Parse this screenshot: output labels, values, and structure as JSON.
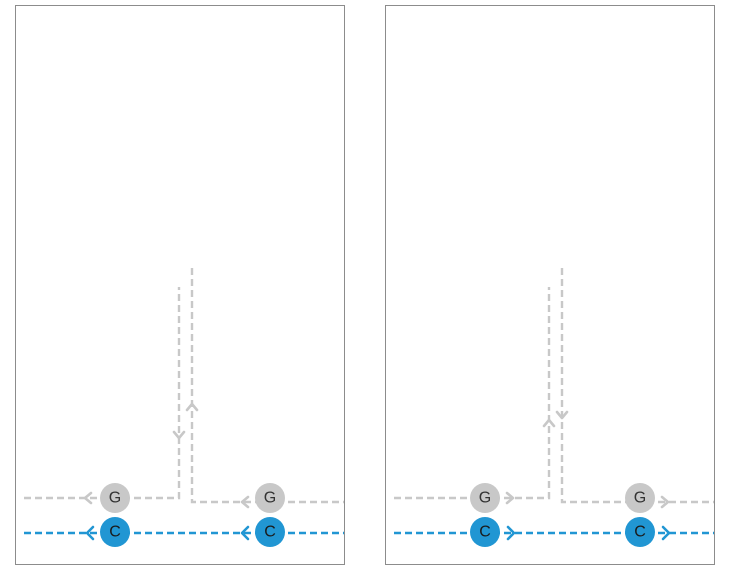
{
  "colors": {
    "background": "#ffffff",
    "panel_border": "#8c8c8c",
    "gray_line": "#c8c8c8",
    "gray_node": "#c8c8c8",
    "gray_text": "#333333",
    "blue_line": "#2196d3",
    "blue_node": "#2196d3",
    "blue_text": "#1a1a1a"
  },
  "panels": [
    {
      "id": "left",
      "direction": "left",
      "nodes": [
        {
          "kind": "G",
          "label": "G"
        },
        {
          "kind": "G",
          "label": "G"
        },
        {
          "kind": "C",
          "label": "C"
        },
        {
          "kind": "C",
          "label": "C"
        }
      ]
    },
    {
      "id": "right",
      "direction": "right",
      "nodes": [
        {
          "kind": "G",
          "label": "G"
        },
        {
          "kind": "G",
          "label": "G"
        },
        {
          "kind": "C",
          "label": "C"
        },
        {
          "kind": "C",
          "label": "C"
        }
      ]
    }
  ]
}
